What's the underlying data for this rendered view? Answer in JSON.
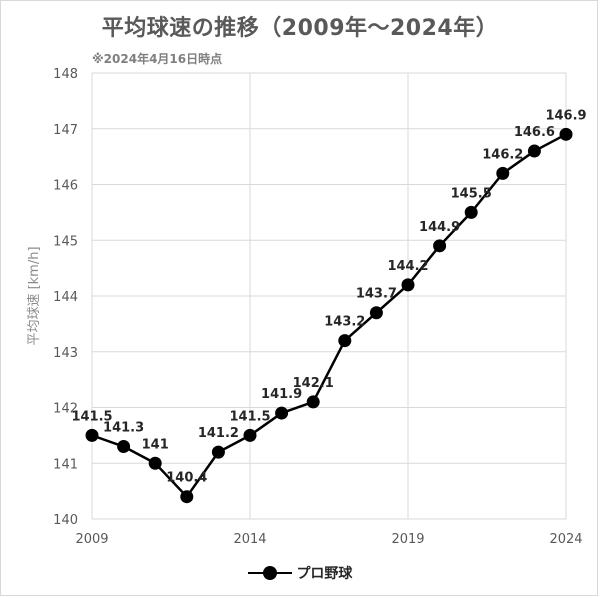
{
  "header": {
    "title": "平均球速の推移（2009年～2024年）",
    "note": "※2024年4月16日時点"
  },
  "chart_data": {
    "type": "line",
    "x": [
      2009,
      2010,
      2011,
      2012,
      2013,
      2014,
      2015,
      2016,
      2017,
      2018,
      2019,
      2020,
      2021,
      2022,
      2023,
      2024
    ],
    "series": [
      {
        "name": "プロ野球",
        "values": [
          141.5,
          141.3,
          141.0,
          140.4,
          141.2,
          141.5,
          141.9,
          142.1,
          143.2,
          143.7,
          144.2,
          144.9,
          145.5,
          146.2,
          146.6,
          146.9
        ],
        "labels": [
          "141.5",
          "141.3",
          "141",
          "140.4",
          "141.2",
          "141.5",
          "141.9",
          "142.1",
          "143.2",
          "143.7",
          "144.2",
          "144.9",
          "145.5",
          "146.2",
          "146.6",
          "146.9"
        ]
      }
    ],
    "xlim": [
      2009,
      2024
    ],
    "x_ticks": [
      "2009",
      "2014",
      "2019",
      "2024"
    ],
    "ylim": [
      140,
      148
    ],
    "y_ticks": [
      "140",
      "141",
      "142",
      "143",
      "144",
      "145",
      "146",
      "147",
      "148"
    ],
    "ylabel": "平均球速 [km/h]",
    "xlabel": "",
    "grid": "both",
    "legend_position": "bottom",
    "line_color": "#000000",
    "grid_color": "#d9d9d9",
    "axis_text_color": "#595959",
    "label_color": "#262626"
  },
  "legend": {
    "label": "プロ野球"
  }
}
